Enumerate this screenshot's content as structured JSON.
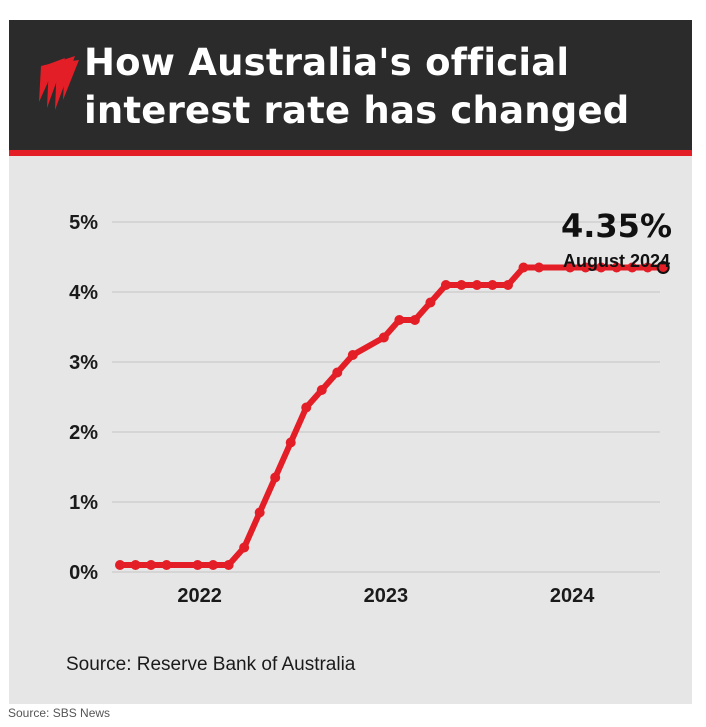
{
  "header": {
    "title_line1": "How Australia's official",
    "title_line2": "interest rate has changed"
  },
  "colors": {
    "accent": "#e41e26",
    "header_bg": "#2b2b2b",
    "panel_bg": "#e6e6e6",
    "grid": "#c4c4c4"
  },
  "icons": {
    "logo": "sbs-logo-icon"
  },
  "chart_data": {
    "type": "line",
    "title": "How Australia's official interest rate has changed",
    "xlabel": "",
    "ylabel": "",
    "x_tick_labels": [
      "2022",
      "2023",
      "2024"
    ],
    "y_tick_labels": [
      "0%",
      "1%",
      "2%",
      "3%",
      "4%",
      "5%"
    ],
    "ylim": [
      0,
      5
    ],
    "grid": true,
    "series": [
      {
        "x": [
          "2021-09",
          "2021-10",
          "2021-11",
          "2021-12",
          "2022-02",
          "2022-03",
          "2022-04",
          "2022-05",
          "2022-06",
          "2022-07",
          "2022-08",
          "2022-09",
          "2022-10",
          "2022-11",
          "2022-12",
          "2023-02",
          "2023-03",
          "2023-04",
          "2023-05",
          "2023-06",
          "2023-07",
          "2023-08",
          "2023-09",
          "2023-10",
          "2023-11",
          "2023-12",
          "2024-02",
          "2024-03",
          "2024-04",
          "2024-05",
          "2024-06",
          "2024-07",
          "2024-08"
        ],
        "values": [
          0.1,
          0.1,
          0.1,
          0.1,
          0.1,
          0.1,
          0.1,
          0.35,
          0.85,
          1.35,
          1.85,
          2.35,
          2.6,
          2.85,
          3.1,
          3.35,
          3.6,
          3.6,
          3.85,
          4.1,
          4.1,
          4.1,
          4.1,
          4.1,
          4.35,
          4.35,
          4.35,
          4.35,
          4.35,
          4.35,
          4.35,
          4.35,
          4.35
        ]
      }
    ],
    "annotation": {
      "value_label": "4.35%",
      "date_label": "August 2024"
    },
    "source": "Source: Reserve Bank of Australia"
  },
  "footer": {
    "credit": "Source: SBS News"
  }
}
